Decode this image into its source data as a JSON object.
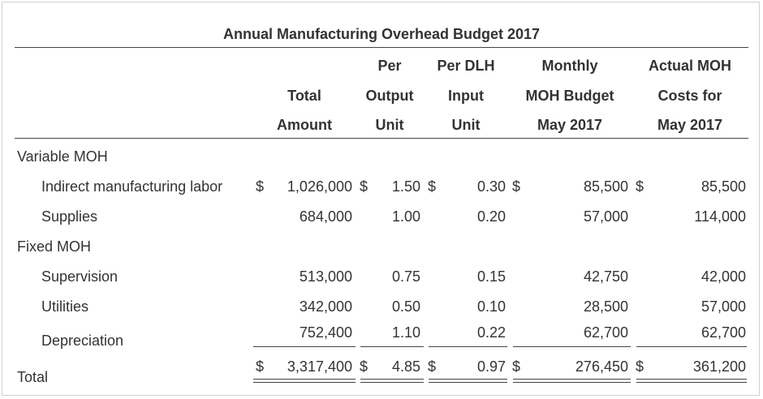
{
  "title": "Annual Manufacturing Overhead Budget 2017",
  "headers": {
    "total": [
      "Total",
      "Amount"
    ],
    "per_output": [
      "Per",
      "Output",
      "Unit"
    ],
    "per_dlh": [
      "Per DLH",
      "Input",
      "Unit"
    ],
    "monthly": [
      "Monthly",
      "MOH Budget",
      "May 2017"
    ],
    "actual": [
      "Actual MOH",
      "Costs for",
      "May 2017"
    ]
  },
  "sections": {
    "variable": "Variable MOH",
    "fixed": "Fixed MOH"
  },
  "currency_symbol": "$",
  "rows": [
    {
      "label": "Indirect manufacturing labor",
      "total": "1,026,000",
      "per_output": "1.50",
      "per_dlh": "0.30",
      "monthly": "85,500",
      "actual": "85,500"
    },
    {
      "label": "Supplies",
      "total": "684,000",
      "per_output": "1.00",
      "per_dlh": "0.20",
      "monthly": "57,000",
      "actual": "114,000"
    },
    {
      "label": "Supervision",
      "total": "513,000",
      "per_output": "0.75",
      "per_dlh": "0.15",
      "monthly": "42,750",
      "actual": "42,000"
    },
    {
      "label": "Utilities",
      "total": "342,000",
      "per_output": "0.50",
      "per_dlh": "0.10",
      "monthly": "28,500",
      "actual": "57,000"
    },
    {
      "label": "Depreciation",
      "total": "752,400",
      "per_output": "1.10",
      "per_dlh": "0.22",
      "monthly": "62,700",
      "actual": "62,700"
    }
  ],
  "total_row": {
    "label": "Total",
    "total": "3,317,400",
    "per_output": "4.85",
    "per_dlh": "0.97",
    "monthly": "276,450",
    "actual": "361,200"
  }
}
